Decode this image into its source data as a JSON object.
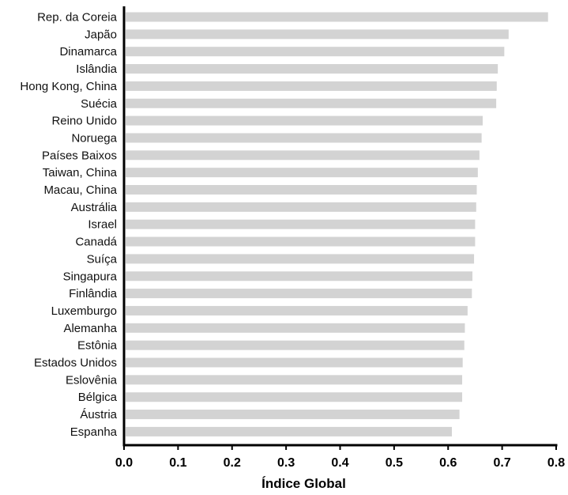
{
  "chart_data": {
    "type": "bar",
    "orientation": "horizontal",
    "title": "",
    "xlabel": "Índice Global",
    "ylabel": "",
    "xlim": [
      0,
      0.8
    ],
    "xticks": [
      "0.0",
      "0.1",
      "0.2",
      "0.3",
      "0.4",
      "0.5",
      "0.6",
      "0.7",
      "0.8"
    ],
    "grid": false,
    "legend": "none",
    "bar_color": "#d3d3d3",
    "axis_color": "#000000",
    "categories": [
      "Rep. da Coreia",
      "Japão",
      "Dinamarca",
      "Islândia",
      "Hong Kong, China",
      "Suécia",
      "Reino Unido",
      "Noruega",
      "Países Baixos",
      "Taiwan, China",
      "Macau, China",
      "Austrália",
      "Israel",
      "Canadá",
      "Suíça",
      "Singapura",
      "Finlândia",
      "Luxemburgo",
      "Alemanha",
      "Estônia",
      "Estados Unidos",
      "Eslovênia",
      "Bélgica",
      "Áustria",
      "Espanha"
    ],
    "values": [
      0.785,
      0.712,
      0.704,
      0.692,
      0.69,
      0.689,
      0.664,
      0.662,
      0.658,
      0.655,
      0.653,
      0.652,
      0.65,
      0.65,
      0.648,
      0.645,
      0.644,
      0.636,
      0.631,
      0.63,
      0.627,
      0.626,
      0.626,
      0.621,
      0.607
    ]
  }
}
